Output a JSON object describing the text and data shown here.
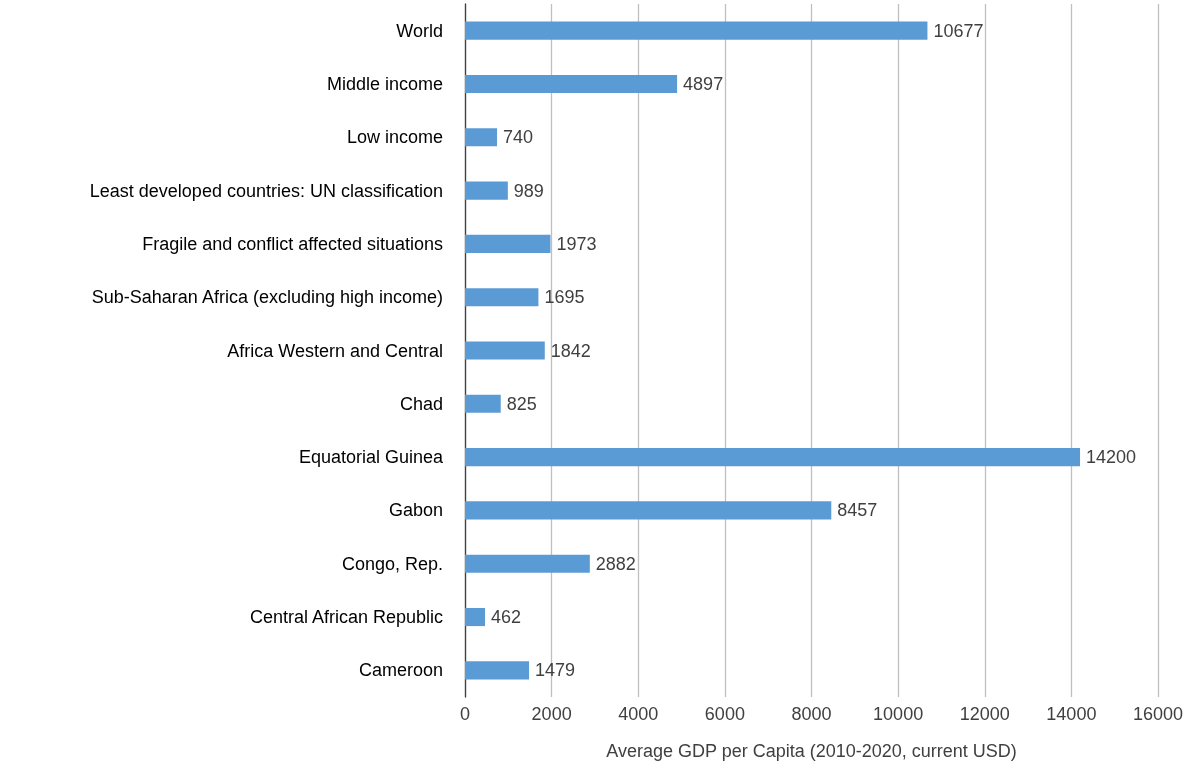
{
  "chart_data": {
    "type": "bar",
    "orientation": "horizontal",
    "xlabel": "Average GDP per Capita (2010-2020, current USD)",
    "categories": [
      "World",
      "Middle income",
      "Low income",
      "Least developed countries: UN classification",
      "Fragile and conflict affected situations",
      "Sub-Saharan Africa (excluding high income)",
      "Africa Western and Central",
      "Chad",
      "Equatorial Guinea",
      "Gabon",
      "Congo, Rep.",
      "Central African Republic",
      "Cameroon"
    ],
    "values": [
      10677,
      4897,
      740,
      989,
      1973,
      1695,
      1842,
      825,
      14200,
      8457,
      2882,
      462,
      1479
    ],
    "color": "#5b9bd5",
    "xlim": [
      0,
      16000
    ],
    "xticks": [
      0,
      2000,
      4000,
      6000,
      8000,
      10000,
      12000,
      14000,
      16000
    ],
    "grid": "x",
    "data_labels": true
  }
}
